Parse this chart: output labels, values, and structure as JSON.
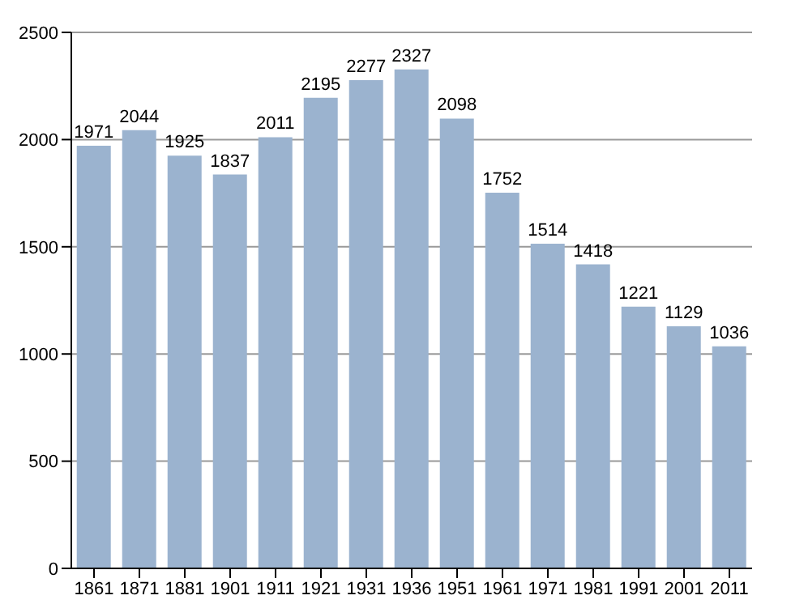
{
  "chart_data": {
    "type": "bar",
    "categories": [
      "1861",
      "1871",
      "1881",
      "1901",
      "1911",
      "1921",
      "1931",
      "1936",
      "1951",
      "1961",
      "1971",
      "1981",
      "1991",
      "2001",
      "2011"
    ],
    "values": [
      1971,
      2044,
      1925,
      1837,
      2011,
      2195,
      2277,
      2327,
      2098,
      1752,
      1514,
      1418,
      1221,
      1129,
      1036
    ],
    "color": "#9bb3cf",
    "ylim": [
      0,
      2500
    ],
    "yticks": [
      0,
      500,
      1000,
      1500,
      2000,
      2500
    ],
    "grid": "y",
    "data_labels": true
  }
}
